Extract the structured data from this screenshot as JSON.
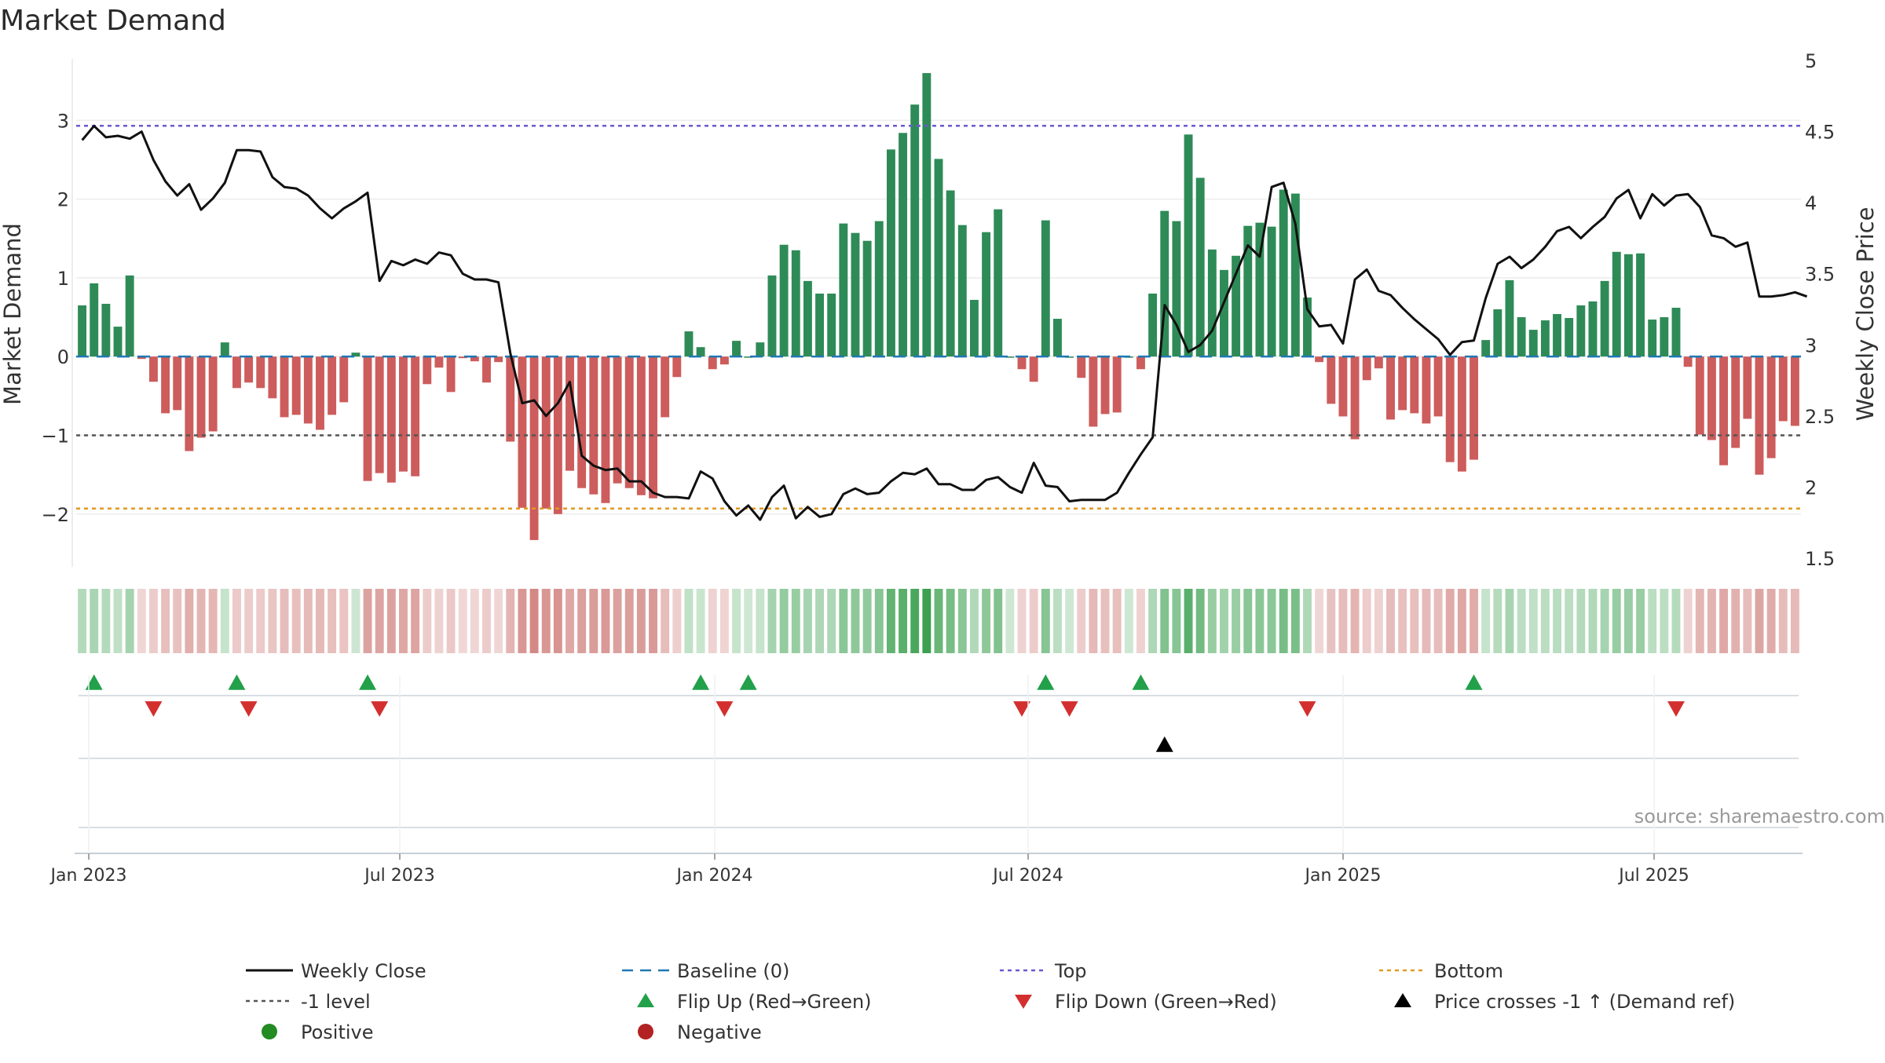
{
  "chart_data": {
    "type": "bar",
    "title": "Market Demand",
    "ylabel_left": "Market Demand",
    "ylabel_right": "Weekly Close Price",
    "y_left_ticks": [
      "−2",
      "−1",
      "0",
      "1",
      "2",
      "3"
    ],
    "y_right_ticks": [
      "1.5",
      "2",
      "2.5",
      "3",
      "3.5",
      "4",
      "4.5",
      "5"
    ],
    "x_ticks": [
      "Jan 2023",
      "Jul 2023",
      "Jan 2024",
      "Jul 2024",
      "Jan 2025",
      "Jul 2025"
    ],
    "ylim_left": [
      -2.65,
      3.85
    ],
    "ylim_right": [
      1.45,
      5.05
    ],
    "reference_lines": {
      "top": 2.93,
      "bottom": -1.93,
      "minus_one": -1.0,
      "baseline": 0
    },
    "demand_values": [
      0.65,
      0.93,
      0.67,
      0.38,
      1.03,
      -0.03,
      -0.32,
      -0.72,
      -0.68,
      -1.2,
      -1.03,
      -0.95,
      0.18,
      -0.4,
      -0.33,
      -0.4,
      -0.53,
      -0.77,
      -0.74,
      -0.85,
      -0.93,
      -0.74,
      -0.58,
      0.05,
      -1.58,
      -1.48,
      -1.6,
      -1.46,
      -1.52,
      -0.35,
      -0.14,
      -0.45,
      -0.02,
      -0.06,
      -0.33,
      -0.07,
      -1.08,
      -1.92,
      -2.33,
      -1.93,
      -2.0,
      -1.45,
      -1.67,
      -1.75,
      -1.86,
      -1.61,
      -1.67,
      -1.76,
      -1.8,
      -0.77,
      -0.26,
      0.32,
      0.12,
      -0.16,
      -0.1,
      0.2,
      0.0,
      0.18,
      1.03,
      1.42,
      1.35,
      0.96,
      0.8,
      0.8,
      1.69,
      1.57,
      1.47,
      1.72,
      2.63,
      2.84,
      3.2,
      3.6,
      2.51,
      2.11,
      1.67,
      0.72,
      1.58,
      1.87,
      0.0,
      -0.16,
      -0.32,
      1.73,
      0.48,
      0.0,
      -0.27,
      -0.89,
      -0.73,
      -0.71,
      0.0,
      -0.16,
      0.8,
      1.85,
      1.72,
      2.82,
      2.27,
      1.36,
      1.1,
      1.28,
      1.66,
      1.7,
      1.65,
      2.12,
      2.07,
      0.75,
      -0.07,
      -0.6,
      -0.76,
      -1.05,
      -0.3,
      -0.15,
      -0.8,
      -0.68,
      -0.72,
      -0.85,
      -0.76,
      -1.34,
      -1.46,
      -1.31,
      0.21,
      0.6,
      0.97,
      0.5,
      0.34,
      0.46,
      0.54,
      0.49,
      0.65,
      0.7,
      0.96,
      1.33,
      1.3,
      1.31,
      0.47,
      0.5,
      0.62,
      -0.13,
      -0.99,
      -1.06,
      -1.38,
      -1.16,
      -0.79,
      -1.5,
      -1.29,
      -0.82,
      -0.88
    ],
    "weekly_close": [
      4.44,
      4.54,
      4.46,
      4.47,
      4.45,
      4.5,
      4.3,
      4.15,
      4.05,
      4.13,
      3.95,
      4.03,
      4.14,
      4.37,
      4.37,
      4.36,
      4.18,
      4.11,
      4.1,
      4.05,
      3.96,
      3.89,
      3.96,
      4.01,
      4.07,
      3.45,
      3.59,
      3.56,
      3.6,
      3.57,
      3.65,
      3.63,
      3.5,
      3.46,
      3.46,
      3.44,
      2.94,
      2.59,
      2.61,
      2.5,
      2.59,
      2.74,
      2.22,
      2.15,
      2.12,
      2.13,
      2.04,
      2.04,
      1.96,
      1.93,
      1.93,
      1.92,
      2.11,
      2.06,
      1.9,
      1.8,
      1.87,
      1.77,
      1.93,
      2.01,
      1.78,
      1.86,
      1.79,
      1.81,
      1.95,
      1.99,
      1.95,
      1.96,
      2.04,
      2.1,
      2.09,
      2.13,
      2.02,
      2.02,
      1.98,
      1.98,
      2.05,
      2.07,
      2.0,
      1.96,
      2.17,
      2.01,
      2.0,
      1.9,
      1.91,
      1.91,
      1.91,
      1.96,
      2.1,
      2.23,
      2.35,
      3.28,
      3.14,
      2.95,
      3.0,
      3.1,
      3.3,
      3.5,
      3.7,
      3.62,
      4.11,
      4.14,
      3.85,
      3.25,
      3.13,
      3.14,
      3.01,
      3.46,
      3.53,
      3.38,
      3.35,
      3.26,
      3.18,
      3.11,
      3.04,
      2.93,
      3.02,
      3.03,
      3.33,
      3.57,
      3.62,
      3.54,
      3.6,
      3.69,
      3.8,
      3.83,
      3.75,
      3.83,
      3.9,
      4.03,
      4.09,
      3.89,
      4.06,
      3.98,
      4.05,
      4.06,
      3.97,
      3.77,
      3.75,
      3.69,
      3.72,
      3.34,
      3.34,
      3.35,
      3.37,
      3.34
    ],
    "flip_up_weeks": [
      1,
      13,
      24,
      52,
      56,
      81,
      89,
      117
    ],
    "flip_down_weeks": [
      6,
      14,
      25,
      54,
      79,
      83,
      103,
      134
    ],
    "price_cross_weeks": [
      91
    ],
    "legend": {
      "weekly_close": "Weekly Close",
      "baseline": "Baseline (0)",
      "top": "Top",
      "bottom": "Bottom",
      "minus_one": "-1 level",
      "flip_up": "Flip Up (Red→Green)",
      "flip_down": "Flip Down (Green→Red)",
      "price_cross": "Price crosses -1 ↑ (Demand ref)",
      "positive": "Positive",
      "negative": "Negative"
    },
    "source": "source: sharemaestro.com"
  },
  "colors": {
    "positive_bar": "#2e8b57",
    "negative_bar": "#cd5c5c",
    "close_line": "#111111",
    "baseline": "#1f77b4",
    "top_line": "#6a5acd",
    "bottom_line": "#e09a20",
    "minus_one_line": "#555555",
    "flip_up": "#22a04a",
    "flip_down": "#d32f2f",
    "price_cross": "#000000",
    "positive_dot": "#228b22",
    "negative_dot": "#b22222"
  }
}
